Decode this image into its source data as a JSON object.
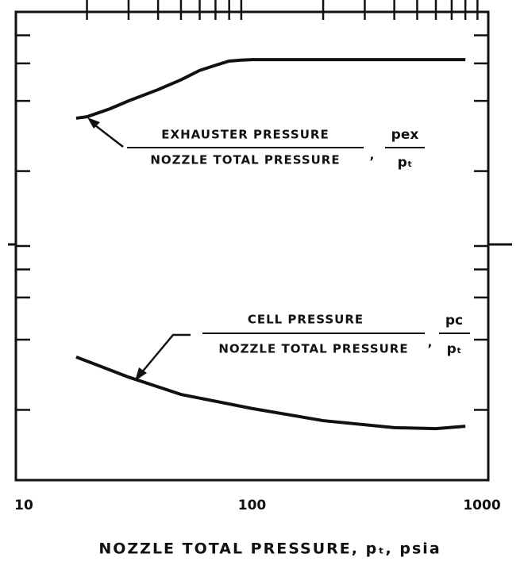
{
  "chart_data": {
    "type": "line",
    "x_label": "NOZZLE TOTAL PRESSURE, pₜ, psia",
    "xscale": "log",
    "xlim": [
      10,
      1000
    ],
    "xticks": [
      10,
      100,
      1000
    ],
    "xminorticks": [
      20,
      30,
      40,
      50,
      60,
      70,
      80,
      90,
      200,
      300,
      400,
      500,
      600,
      700,
      800,
      900
    ],
    "ylim": [
      0,
      1
    ],
    "yticks": [
      0.15,
      0.3,
      0.39,
      0.45,
      0.5,
      0.66,
      0.81,
      0.89,
      0.95
    ],
    "series": [
      {
        "color": "#111111",
        "x": [
          18,
          20,
          25,
          30,
          40,
          50,
          60,
          70,
          80,
          90,
          100,
          200,
          500,
          800
        ],
        "values": [
          0.773,
          0.776,
          0.793,
          0.81,
          0.834,
          0.855,
          0.875,
          0.886,
          0.895,
          0.897,
          0.898,
          0.898,
          0.898,
          0.898
        ]
      },
      {
        "color": "#111111",
        "x": [
          18,
          30,
          50,
          100,
          200,
          400,
          600,
          800
        ],
        "values": [
          0.263,
          0.22,
          0.183,
          0.153,
          0.127,
          0.112,
          0.11,
          0.115
        ]
      }
    ],
    "annotations": [
      {
        "numerator": "EXHAUSTER PRESSURE",
        "denominator": "NOZZLE TOTAL PRESSURE",
        "separator": ",",
        "symbol_numerator": "pex",
        "symbol_denominator": "pₜ"
      },
      {
        "numerator": "CELL PRESSURE",
        "denominator": "NOZZLE TOTAL PRESSURE",
        "separator": ",",
        "symbol_numerator": "pc",
        "symbol_denominator": "pₜ"
      }
    ]
  }
}
